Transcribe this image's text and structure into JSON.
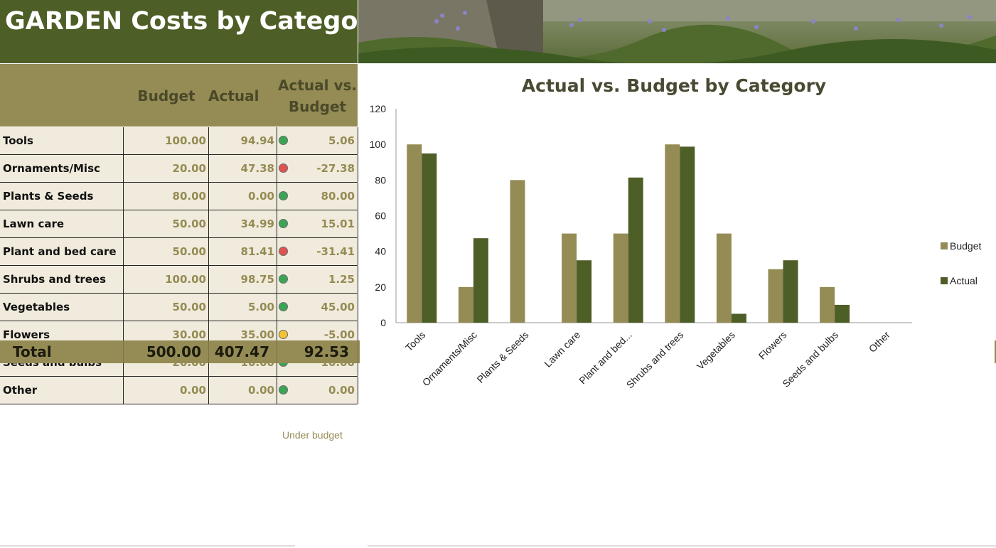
{
  "header": {
    "title": "GARDEN Costs by Category"
  },
  "table": {
    "columns": {
      "budget": "Budget",
      "actual": "Actual",
      "variance_line1": "Actual vs.",
      "variance_line2": "Budget"
    },
    "rows": [
      {
        "category": "Tools",
        "budget": "100.00",
        "actual": "94.94",
        "status": "green",
        "variance": "5.06"
      },
      {
        "category": "Ornaments/Misc",
        "budget": "20.00",
        "actual": "47.38",
        "status": "red",
        "variance": "-27.38"
      },
      {
        "category": "Plants & Seeds",
        "budget": "80.00",
        "actual": "0.00",
        "status": "green",
        "variance": "80.00"
      },
      {
        "category": "Lawn care",
        "budget": "50.00",
        "actual": "34.99",
        "status": "green",
        "variance": "15.01"
      },
      {
        "category": "Plant and bed care",
        "budget": "50.00",
        "actual": "81.41",
        "status": "red",
        "variance": "-31.41"
      },
      {
        "category": "Shrubs and trees",
        "budget": "100.00",
        "actual": "98.75",
        "status": "green",
        "variance": "1.25"
      },
      {
        "category": "Vegetables",
        "budget": "50.00",
        "actual": "5.00",
        "status": "green",
        "variance": "45.00"
      },
      {
        "category": "Flowers",
        "budget": "30.00",
        "actual": "35.00",
        "status": "yellow",
        "variance": "-5.00"
      },
      {
        "category": "Seeds and bulbs",
        "budget": "20.00",
        "actual": "10.00",
        "status": "green",
        "variance": "10.00"
      },
      {
        "category": "Other",
        "budget": "0.00",
        "actual": "0.00",
        "status": "green",
        "variance": "0.00"
      }
    ],
    "total": {
      "label": "Total",
      "budget": "500.00",
      "actual": "407.47",
      "variance": "92.53"
    },
    "note": "Under budget"
  },
  "colors": {
    "title_bg": "#4e5e27",
    "header_bg": "#958b54",
    "row_bg": "#f0ebdc",
    "budget_series": "#958b54",
    "actual_series": "#4e5e27",
    "status_green": "#3aa655",
    "status_red": "#e0534f",
    "status_yellow": "#f2c230"
  },
  "chart_data": {
    "type": "bar",
    "title": "Actual vs. Budget by Category",
    "categories": [
      "Tools",
      "Ornaments/Misc",
      "Plants & Seeds",
      "Lawn care",
      "Plant and bed...",
      "Shrubs and trees",
      "Vegetables",
      "Flowers",
      "Seeds and bulbs",
      "Other"
    ],
    "series": [
      {
        "name": "Budget",
        "values": [
          100,
          20,
          80,
          50,
          50,
          100,
          50,
          30,
          20,
          0
        ]
      },
      {
        "name": "Actual",
        "values": [
          94.94,
          47.38,
          0,
          34.99,
          81.41,
          98.75,
          5,
          35,
          10,
          0
        ]
      }
    ],
    "ylim": [
      0,
      120
    ],
    "yticks": [
      0,
      20,
      40,
      60,
      80,
      100,
      120
    ],
    "xlabel": "",
    "ylabel": "",
    "legend": "right",
    "grid": false
  }
}
